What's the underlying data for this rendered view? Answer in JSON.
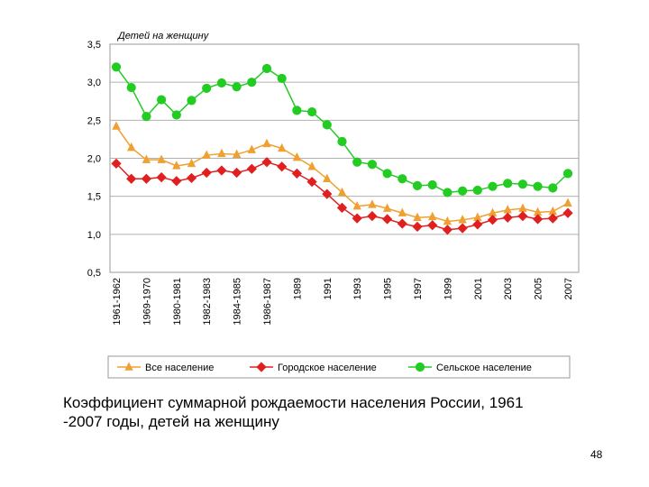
{
  "chart_data": {
    "type": "line",
    "ylabel": "Детей на женщину",
    "ylim": [
      0.5,
      3.5
    ],
    "yticks": [
      "0,5",
      "1,0",
      "1,5",
      "2,0",
      "2,5",
      "3,0",
      "3,5"
    ],
    "ytick_values": [
      0.5,
      1.0,
      1.5,
      2.0,
      2.5,
      3.0,
      3.5
    ],
    "xtick_labels": [
      "1961-1962",
      "1969-1970",
      "1980-1981",
      "1982-1983",
      "1984-1985",
      "1986-1987",
      "1989",
      "1991",
      "1993",
      "1995",
      "1997",
      "1999",
      "2001",
      "2003",
      "2005",
      "2007"
    ],
    "xtick_index": [
      0,
      2,
      4,
      6,
      8,
      10,
      12,
      14,
      16,
      18,
      20,
      22,
      24,
      26,
      28,
      30
    ],
    "grid": true,
    "legend": "bottom",
    "series": [
      {
        "name": "Все население",
        "color": "#f0a030",
        "marker": "triangle",
        "values": [
          2.42,
          2.14,
          1.98,
          1.98,
          1.9,
          1.93,
          2.04,
          2.06,
          2.05,
          2.11,
          2.19,
          2.13,
          2.01,
          1.89,
          1.73,
          1.55,
          1.37,
          1.39,
          1.34,
          1.28,
          1.22,
          1.23,
          1.17,
          1.19,
          1.22,
          1.28,
          1.32,
          1.34,
          1.29,
          1.3,
          1.41
        ]
      },
      {
        "name": "Городское население",
        "color": "#e02020",
        "marker": "diamond",
        "values": [
          1.93,
          1.73,
          1.73,
          1.75,
          1.7,
          1.74,
          1.81,
          1.84,
          1.81,
          1.86,
          1.95,
          1.89,
          1.8,
          1.69,
          1.53,
          1.35,
          1.21,
          1.24,
          1.2,
          1.14,
          1.1,
          1.12,
          1.06,
          1.08,
          1.13,
          1.19,
          1.22,
          1.24,
          1.2,
          1.21,
          1.28
        ]
      },
      {
        "name": "Сельское население",
        "color": "#22cc22",
        "marker": "circle",
        "values": [
          3.2,
          2.93,
          2.55,
          2.77,
          2.57,
          2.76,
          2.92,
          2.99,
          2.94,
          3.0,
          3.18,
          3.05,
          2.63,
          2.61,
          2.44,
          2.22,
          1.95,
          1.92,
          1.8,
          1.73,
          1.64,
          1.65,
          1.55,
          1.57,
          1.58,
          1.63,
          1.67,
          1.66,
          1.63,
          1.61,
          1.8
        ]
      }
    ]
  },
  "caption": "Коэффициент суммарной рождаемости населения России, 1961\n-2007 годы, детей на женщину",
  "page_number": "48"
}
